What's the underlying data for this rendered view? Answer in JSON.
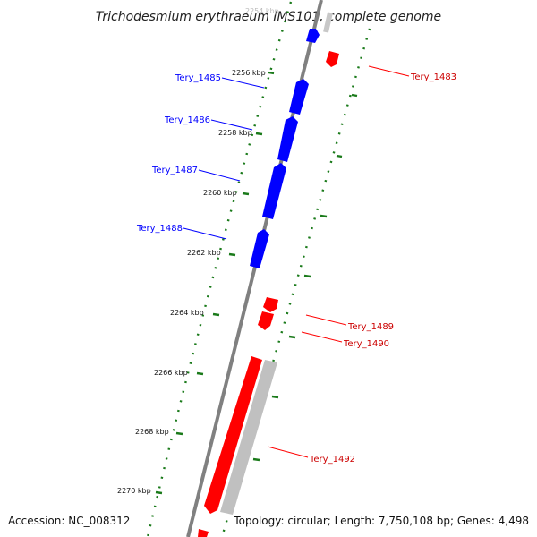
{
  "title": "Trichodesmium erythraeum IMS101, complete genome",
  "footer": {
    "accession": "Accession: NC_008312",
    "topology": "Topology: circular; Length: 7,750,108 bp; Genes: 4,498"
  },
  "colors": {
    "forward": "#0000ff",
    "reverse": "#ff0000",
    "gray_feature": "#c0c0c0",
    "ticks": "#1a7a1a",
    "backbone": "#808080"
  },
  "kbp_labels": [
    "2254 kbp",
    "2256 kbp",
    "2258 kbp",
    "2260 kbp",
    "2262 kbp",
    "2264 kbp",
    "2266 kbp",
    "2268 kbp",
    "2270 kbp"
  ],
  "forward_genes": [
    "Tery_1485",
    "Tery_1486",
    "Tery_1487",
    "Tery_1488"
  ],
  "reverse_genes": [
    "Tery_1483",
    "Tery_1489",
    "Tery_1490",
    "Tery_1492"
  ]
}
